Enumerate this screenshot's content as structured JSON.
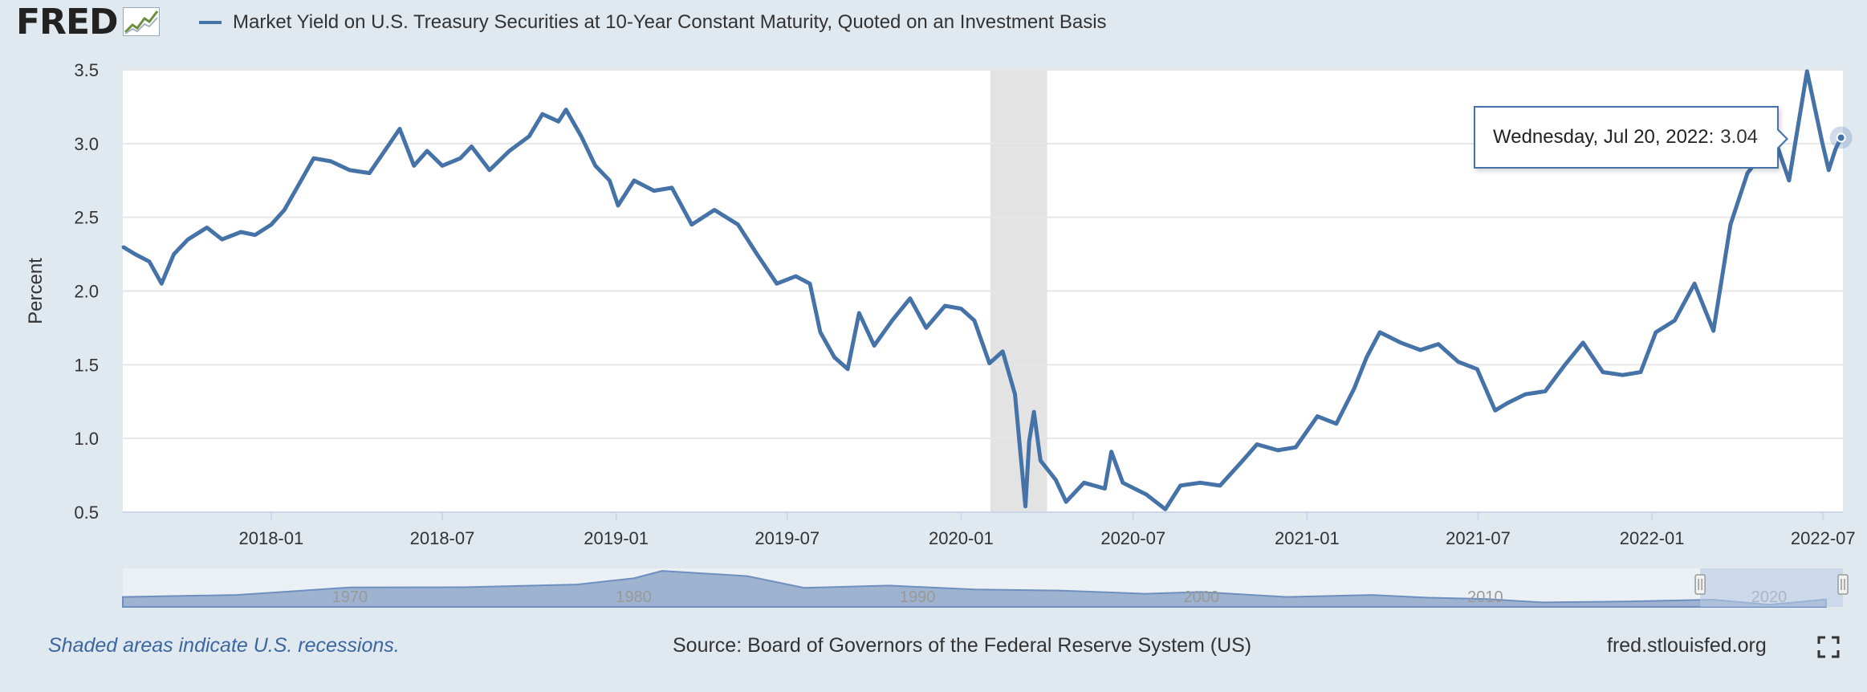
{
  "header": {
    "logo_text": "FRED",
    "legend_label": "Market Yield on U.S. Treasury Securities at 10-Year Constant Maturity, Quoted on an Investment Basis"
  },
  "colors": {
    "series": "#4572a7",
    "recession": "#e3e3e3",
    "background": "#e1e9f0",
    "navigator_fill": "#9db3cf",
    "navigator_window": "#b7c9e3"
  },
  "tooltip": {
    "date_label": "Wednesday, Jul 20, 2022:",
    "value": "3.04"
  },
  "navigator": {
    "labels": [
      "1970",
      "1980",
      "1990",
      "2000",
      "2010",
      "2020"
    ]
  },
  "footer": {
    "recession_note": "Shaded areas indicate U.S. recessions.",
    "source": "Source: Board of Governors of the Federal Reserve System (US)",
    "url": "fred.stlouisfed.org"
  },
  "chart_data": {
    "type": "line",
    "title": "",
    "xlabel": "",
    "ylabel": "Percent",
    "ylim": [
      0.5,
      3.5
    ],
    "xlim": [
      "2017-07-28",
      "2022-07-22"
    ],
    "yticks": [
      "0.5",
      "1.0",
      "1.5",
      "2.0",
      "2.5",
      "3.0",
      "3.5"
    ],
    "xticks": [
      {
        "date": "2018-01-01",
        "label": "2018-01"
      },
      {
        "date": "2018-07-01",
        "label": "2018-07"
      },
      {
        "date": "2019-01-01",
        "label": "2019-01"
      },
      {
        "date": "2019-07-01",
        "label": "2019-07"
      },
      {
        "date": "2020-01-01",
        "label": "2020-01"
      },
      {
        "date": "2020-07-01",
        "label": "2020-07"
      },
      {
        "date": "2021-01-01",
        "label": "2021-01"
      },
      {
        "date": "2021-07-01",
        "label": "2021-07"
      },
      {
        "date": "2022-01-01",
        "label": "2022-01"
      },
      {
        "date": "2022-07-01",
        "label": "2022-07"
      }
    ],
    "grid": true,
    "recessions": [
      {
        "start": "2020-02-01",
        "end": "2020-04-01"
      }
    ],
    "series": [
      {
        "name": "Market Yield on U.S. Treasury Securities at 10-Year Constant Maturity, Quoted on an Investment Basis",
        "points": [
          [
            "2017-07-28",
            2.3
          ],
          [
            "2017-08-10",
            2.25
          ],
          [
            "2017-08-25",
            2.2
          ],
          [
            "2017-09-07",
            2.05
          ],
          [
            "2017-09-20",
            2.25
          ],
          [
            "2017-10-05",
            2.35
          ],
          [
            "2017-10-25",
            2.43
          ],
          [
            "2017-11-10",
            2.35
          ],
          [
            "2017-11-30",
            2.4
          ],
          [
            "2017-12-15",
            2.38
          ],
          [
            "2018-01-01",
            2.45
          ],
          [
            "2018-01-15",
            2.55
          ],
          [
            "2018-01-30",
            2.72
          ],
          [
            "2018-02-15",
            2.9
          ],
          [
            "2018-03-05",
            2.88
          ],
          [
            "2018-03-25",
            2.82
          ],
          [
            "2018-04-15",
            2.8
          ],
          [
            "2018-05-01",
            2.95
          ],
          [
            "2018-05-17",
            3.1
          ],
          [
            "2018-06-01",
            2.85
          ],
          [
            "2018-06-15",
            2.95
          ],
          [
            "2018-07-01",
            2.85
          ],
          [
            "2018-07-20",
            2.9
          ],
          [
            "2018-08-01",
            2.98
          ],
          [
            "2018-08-20",
            2.82
          ],
          [
            "2018-09-10",
            2.95
          ],
          [
            "2018-10-01",
            3.05
          ],
          [
            "2018-10-15",
            3.2
          ],
          [
            "2018-11-01",
            3.15
          ],
          [
            "2018-11-09",
            3.23
          ],
          [
            "2018-11-25",
            3.05
          ],
          [
            "2018-12-10",
            2.85
          ],
          [
            "2018-12-25",
            2.75
          ],
          [
            "2019-01-03",
            2.58
          ],
          [
            "2019-01-20",
            2.75
          ],
          [
            "2019-02-10",
            2.68
          ],
          [
            "2019-03-01",
            2.7
          ],
          [
            "2019-03-22",
            2.45
          ],
          [
            "2019-04-15",
            2.55
          ],
          [
            "2019-05-10",
            2.45
          ],
          [
            "2019-05-30",
            2.25
          ],
          [
            "2019-06-20",
            2.05
          ],
          [
            "2019-07-10",
            2.1
          ],
          [
            "2019-07-25",
            2.05
          ],
          [
            "2019-08-05",
            1.72
          ],
          [
            "2019-08-20",
            1.55
          ],
          [
            "2019-09-03",
            1.47
          ],
          [
            "2019-09-15",
            1.85
          ],
          [
            "2019-10-01",
            1.63
          ],
          [
            "2019-10-20",
            1.8
          ],
          [
            "2019-11-08",
            1.95
          ],
          [
            "2019-11-25",
            1.75
          ],
          [
            "2019-12-15",
            1.9
          ],
          [
            "2020-01-01",
            1.88
          ],
          [
            "2020-01-15",
            1.8
          ],
          [
            "2020-01-31",
            1.51
          ],
          [
            "2020-02-14",
            1.59
          ],
          [
            "2020-02-27",
            1.3
          ],
          [
            "2020-03-09",
            0.54
          ],
          [
            "2020-03-13",
            0.98
          ],
          [
            "2020-03-18",
            1.18
          ],
          [
            "2020-03-25",
            0.85
          ],
          [
            "2020-04-10",
            0.72
          ],
          [
            "2020-04-21",
            0.57
          ],
          [
            "2020-05-10",
            0.7
          ],
          [
            "2020-06-01",
            0.66
          ],
          [
            "2020-06-08",
            0.91
          ],
          [
            "2020-06-20",
            0.7
          ],
          [
            "2020-07-15",
            0.62
          ],
          [
            "2020-08-04",
            0.52
          ],
          [
            "2020-08-20",
            0.68
          ],
          [
            "2020-09-10",
            0.7
          ],
          [
            "2020-10-01",
            0.68
          ],
          [
            "2020-10-25",
            0.85
          ],
          [
            "2020-11-09",
            0.96
          ],
          [
            "2020-12-01",
            0.92
          ],
          [
            "2020-12-20",
            0.94
          ],
          [
            "2021-01-12",
            1.15
          ],
          [
            "2021-02-01",
            1.1
          ],
          [
            "2021-02-20",
            1.34
          ],
          [
            "2021-03-05",
            1.55
          ],
          [
            "2021-03-19",
            1.72
          ],
          [
            "2021-04-10",
            1.65
          ],
          [
            "2021-05-01",
            1.6
          ],
          [
            "2021-05-20",
            1.64
          ],
          [
            "2021-06-10",
            1.52
          ],
          [
            "2021-06-30",
            1.47
          ],
          [
            "2021-07-19",
            1.19
          ],
          [
            "2021-08-01",
            1.24
          ],
          [
            "2021-08-20",
            1.3
          ],
          [
            "2021-09-10",
            1.32
          ],
          [
            "2021-10-01",
            1.5
          ],
          [
            "2021-10-20",
            1.65
          ],
          [
            "2021-11-10",
            1.45
          ],
          [
            "2021-12-01",
            1.43
          ],
          [
            "2021-12-20",
            1.45
          ],
          [
            "2022-01-05",
            1.72
          ],
          [
            "2022-01-25",
            1.8
          ],
          [
            "2022-02-15",
            2.05
          ],
          [
            "2022-03-07",
            1.73
          ],
          [
            "2022-03-25",
            2.45
          ],
          [
            "2022-04-12",
            2.8
          ],
          [
            "2022-04-29",
            2.94
          ],
          [
            "2022-05-10",
            3.05
          ],
          [
            "2022-05-26",
            2.75
          ],
          [
            "2022-06-14",
            3.49
          ],
          [
            "2022-06-30",
            3.01
          ],
          [
            "2022-07-07",
            2.82
          ],
          [
            "2022-07-14",
            2.96
          ],
          [
            "2022-07-20",
            3.04
          ]
        ]
      }
    ]
  }
}
